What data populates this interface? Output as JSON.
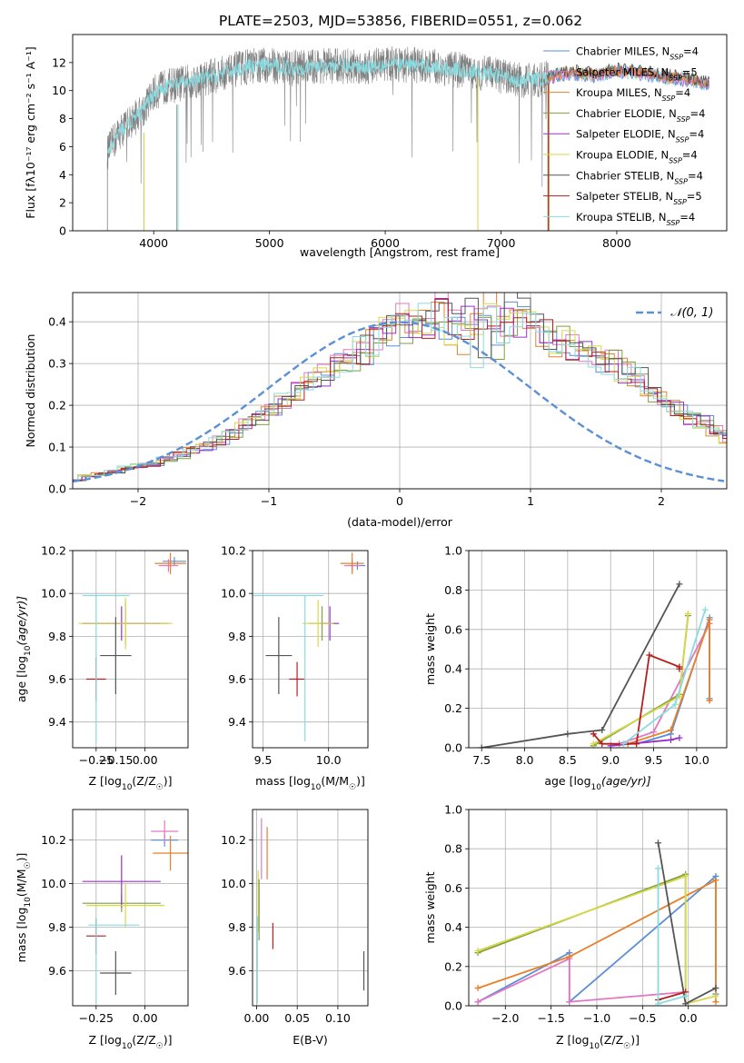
{
  "figure": {
    "title": "PLATE=2503, MJD=53856, FIBERID=0551, z=0.062"
  },
  "colors": {
    "chabrier_miles": "#5b8fd6",
    "salpeter_miles": "#e377c2",
    "kroupa_miles": "#e6802a",
    "chabrier_elodie": "#7f9f3f",
    "salpeter_elodie": "#9b30c9",
    "kroupa_elodie": "#d6d84a",
    "chabrier_stelib": "#555555",
    "salpeter_stelib": "#b51f1f",
    "kroupa_stelib": "#8adbe0",
    "data_gray": "#808080",
    "normal_curve": "#5b8fd6"
  },
  "chart_data": [
    {
      "id": "spectrum",
      "type": "line",
      "xlabel": "wavelength [Angstrom, rest frame]",
      "ylabel": "Flux [fλ10⁻¹⁷ erg cm⁻² s⁻¹ A⁻¹]",
      "xlim": [
        3300,
        8950
      ],
      "ylim": [
        0,
        14
      ],
      "xticks": [
        4000,
        5000,
        6000,
        7000,
        8000
      ],
      "yticks": [
        0,
        2,
        4,
        6,
        8,
        10,
        12
      ],
      "grid": false,
      "legend_position": "right",
      "spectrum_envelope": {
        "x": [
          3600,
          3700,
          3800,
          3900,
          4000,
          4100,
          4300,
          4500,
          4800,
          5000,
          5200,
          5500,
          5800,
          6000,
          6300,
          6600,
          6900,
          7200,
          7400
        ],
        "y": [
          5.6,
          7.0,
          7.8,
          8.5,
          9.8,
          10.3,
          10.6,
          11.0,
          11.7,
          11.8,
          11.6,
          11.8,
          11.7,
          11.9,
          11.8,
          11.5,
          11.2,
          10.7,
          10.9
        ]
      },
      "models_tail": {
        "x": [
          7400,
          7600,
          7800,
          8000,
          8200,
          8400,
          8600,
          8800
        ],
        "y": [
          10.9,
          11.3,
          11.1,
          11.4,
          11.3,
          11.0,
          10.8,
          10.5
        ]
      },
      "series": [
        {
          "name": "Chabrier MILES, N$_{SSP}$=4",
          "label_main": "Chabrier MILES, N",
          "label_sub": "SSP",
          "label_end": "=4",
          "color_key": "chabrier_miles"
        },
        {
          "name": "Salpeter MILES, N$_{SSP}$=5",
          "label_main": "Salpeter MILES, N",
          "label_sub": "SSP",
          "label_end": "=5",
          "color_key": "salpeter_miles"
        },
        {
          "name": "Kroupa MILES, N$_{SSP}$=4",
          "label_main": "Kroupa MILES, N",
          "label_sub": "SSP",
          "label_end": "=4",
          "color_key": "kroupa_miles"
        },
        {
          "name": "Chabrier ELODIE, N$_{SSP}$=4",
          "label_main": "Chabrier ELODIE, N",
          "label_sub": "SSP",
          "label_end": "=4",
          "color_key": "chabrier_elodie"
        },
        {
          "name": "Salpeter ELODIE, N$_{SSP}$=4",
          "label_main": "Salpeter ELODIE, N",
          "label_sub": "SSP",
          "label_end": "=4",
          "color_key": "salpeter_elodie"
        },
        {
          "name": "Kroupa ELODIE, N$_{SSP}$=4",
          "label_main": "Kroupa ELODIE, N",
          "label_sub": "SSP",
          "label_end": "=4",
          "color_key": "kroupa_elodie"
        },
        {
          "name": "Chabrier STELIB, N$_{SSP}$=4",
          "label_main": "Chabrier STELIB, N",
          "label_sub": "SSP",
          "label_end": "=4",
          "color_key": "chabrier_stelib"
        },
        {
          "name": "Salpeter STELIB, N$_{SSP}$=5",
          "label_main": "Salpeter STELIB, N",
          "label_sub": "SSP",
          "label_end": "=5",
          "color_key": "salpeter_stelib"
        },
        {
          "name": "Kroupa STELIB, N$_{SSP}$=4",
          "label_main": "Kroupa STELIB, N",
          "label_sub": "SSP",
          "label_end": "=4",
          "color_key": "kroupa_stelib"
        }
      ]
    },
    {
      "id": "residuals",
      "type": "line",
      "xlabel": "(data-model)/error",
      "ylabel": "Normed distribution",
      "xlim": [
        -2.5,
        2.5
      ],
      "ylim": [
        0,
        0.47
      ],
      "xticks": [
        -2,
        -1,
        0,
        1,
        2
      ],
      "yticks": [
        0.0,
        0.1,
        0.2,
        0.3,
        0.4
      ],
      "grid": true,
      "legend_position": "top-right",
      "legend_label": "𝒩(0, 1)",
      "base_hist": {
        "bin_width": 0.1,
        "x_start": -2.5,
        "values": [
          0.02,
          0.03,
          0.035,
          0.04,
          0.05,
          0.055,
          0.06,
          0.07,
          0.08,
          0.09,
          0.1,
          0.115,
          0.13,
          0.15,
          0.17,
          0.19,
          0.21,
          0.23,
          0.25,
          0.27,
          0.29,
          0.31,
          0.33,
          0.35,
          0.37,
          0.38,
          0.39,
          0.4,
          0.41,
          0.41,
          0.42,
          0.41,
          0.4,
          0.4,
          0.39,
          0.38,
          0.37,
          0.35,
          0.34,
          0.33,
          0.31,
          0.3,
          0.28,
          0.26,
          0.23,
          0.21,
          0.19,
          0.17,
          0.16,
          0.14,
          0.12,
          0.11,
          0.1,
          0.09,
          0.08,
          0.07,
          0.06,
          0.06,
          0.05,
          0.045,
          0.04,
          0.035,
          0.03
        ]
      }
    },
    {
      "id": "age_vs_Z",
      "type": "scatter",
      "xlabel": "Z [log10(Z/Z☉)]",
      "xlabel_main": "Z [log",
      "xlabel_tail": "(Z/Z",
      "ylabel": "age [log10(age/yr)]",
      "ylabel_main": "age  [log",
      "ylabel_tail": "(age/yr)]",
      "xlim": [
        -0.37,
        0.22
      ],
      "ylim": [
        9.28,
        10.2
      ],
      "xticks": [
        -0.25,
        -0.15,
        0.0
      ],
      "xticklabels": [
        "−0.25",
        "−0.15",
        "0.00"
      ],
      "yticks": [
        9.4,
        9.6,
        9.8,
        10.0,
        10.2
      ],
      "points": [
        {
          "x": 0.15,
          "y": 10.15,
          "xerr": 0.06,
          "yerr": 0.02,
          "color_key": "chabrier_miles"
        },
        {
          "x": 0.12,
          "y": 10.13,
          "xerr": 0.05,
          "yerr": 0.03,
          "color_key": "salpeter_miles"
        },
        {
          "x": 0.13,
          "y": 10.14,
          "xerr": 0.08,
          "yerr": 0.05,
          "color_key": "kroupa_miles"
        },
        {
          "x": -0.1,
          "y": 9.86,
          "xerr": 0.22,
          "yerr": 0.1,
          "color_key": "chabrier_elodie"
        },
        {
          "x": -0.12,
          "y": 9.86,
          "xerr": 0.2,
          "yerr": 0.08,
          "color_key": "salpeter_elodie"
        },
        {
          "x": -0.1,
          "y": 9.86,
          "xerr": 0.24,
          "yerr": 0.12,
          "color_key": "kroupa_elodie"
        },
        {
          "x": -0.15,
          "y": 9.71,
          "xerr": 0.08,
          "yerr": 0.18,
          "color_key": "chabrier_stelib"
        },
        {
          "x": -0.25,
          "y": 9.6,
          "xerr": 0.05,
          "yerr": 0.1,
          "color_key": "salpeter_stelib"
        },
        {
          "x": -0.25,
          "y": 9.65,
          "xerr": 0.0,
          "yerr": 0.35,
          "color_key": "kroupa_stelib"
        },
        {
          "x": -0.2,
          "y": 9.99,
          "xerr": 0.12,
          "yerr": 0.0,
          "color_key": "kroupa_stelib"
        }
      ]
    },
    {
      "id": "age_vs_mass",
      "type": "scatter",
      "xlabel": "mass [log10(M/M☉)]",
      "xlabel_main": "mass [log",
      "xlabel_tail": "(M/M",
      "xlim": [
        9.42,
        10.3
      ],
      "ylim": [
        9.28,
        10.2
      ],
      "xticks": [
        9.5,
        10.0
      ],
      "xticklabels": [
        "9.5",
        "10.0"
      ],
      "yticks": [
        9.4,
        9.6,
        9.8,
        10.0,
        10.2
      ],
      "points": [
        {
          "x": 10.22,
          "y": 10.13,
          "xerr": 0.06,
          "yerr": 0.02,
          "color_key": "chabrier_miles"
        },
        {
          "x": 10.18,
          "y": 10.13,
          "xerr": 0.06,
          "yerr": 0.03,
          "color_key": "salpeter_miles"
        },
        {
          "x": 10.18,
          "y": 10.14,
          "xerr": 0.09,
          "yerr": 0.05,
          "color_key": "kroupa_miles"
        },
        {
          "x": 9.95,
          "y": 9.86,
          "xerr": 0.1,
          "yerr": 0.08,
          "color_key": "chabrier_elodie"
        },
        {
          "x": 10.01,
          "y": 9.86,
          "xerr": 0.07,
          "yerr": 0.08,
          "color_key": "salpeter_elodie"
        },
        {
          "x": 9.92,
          "y": 9.86,
          "xerr": 0.12,
          "yerr": 0.11,
          "color_key": "kroupa_elodie"
        },
        {
          "x": 9.62,
          "y": 9.71,
          "xerr": 0.1,
          "yerr": 0.18,
          "color_key": "chabrier_stelib"
        },
        {
          "x": 9.76,
          "y": 9.6,
          "xerr": 0.06,
          "yerr": 0.08,
          "color_key": "salpeter_stelib"
        },
        {
          "x": 9.82,
          "y": 9.65,
          "xerr": 0.0,
          "yerr": 0.34,
          "color_key": "kroupa_stelib"
        },
        {
          "x": 9.68,
          "y": 9.99,
          "xerr": 0.28,
          "yerr": 0.0,
          "color_key": "kroupa_stelib"
        }
      ]
    },
    {
      "id": "massweight_vs_age",
      "type": "line",
      "xlabel": "age [log10(age/yr)]",
      "xlabel_main": "age  [log",
      "xlabel_tail": "(age/yr)]",
      "ylabel": "mass weight",
      "xlim": [
        7.35,
        10.35
      ],
      "ylim": [
        0,
        1.0
      ],
      "xticks": [
        7.5,
        8.0,
        8.5,
        9.0,
        9.5,
        10.0
      ],
      "xticklabels": [
        "7.5",
        "8.0",
        "8.5",
        "9.0",
        "9.5",
        "10.0"
      ],
      "yticks": [
        0.0,
        0.2,
        0.4,
        0.6,
        0.8,
        1.0
      ],
      "series": [
        {
          "color_key": "chabrier_miles",
          "x": [
            9.3,
            9.7,
            10.15,
            10.15
          ],
          "y": [
            0.02,
            0.07,
            0.66,
            0.25
          ]
        },
        {
          "color_key": "salpeter_miles",
          "x": [
            9.1,
            9.5,
            10.15,
            10.15
          ],
          "y": [
            0.02,
            0.08,
            0.63,
            0.24
          ]
        },
        {
          "color_key": "kroupa_miles",
          "x": [
            9.2,
            9.7,
            10.15,
            10.15
          ],
          "y": [
            0.02,
            0.09,
            0.65,
            0.24
          ]
        },
        {
          "color_key": "chabrier_elodie",
          "x": [
            8.8,
            9.8,
            9.9
          ],
          "y": [
            0.01,
            0.27,
            0.67
          ]
        },
        {
          "color_key": "salpeter_elodie",
          "x": [
            9.0,
            9.7,
            9.8
          ],
          "y": [
            0.01,
            0.04,
            0.05
          ]
        },
        {
          "color_key": "kroupa_elodie",
          "x": [
            8.8,
            9.8,
            9.9
          ],
          "y": [
            0.02,
            0.26,
            0.68
          ]
        },
        {
          "color_key": "chabrier_stelib",
          "x": [
            7.5,
            8.5,
            8.9,
            9.8
          ],
          "y": [
            0.0,
            0.07,
            0.09,
            0.83
          ]
        },
        {
          "color_key": "salpeter_stelib",
          "x": [
            8.8,
            8.9,
            9.3,
            9.45,
            9.8,
            9.8
          ],
          "y": [
            0.07,
            0.02,
            0.02,
            0.47,
            0.41,
            0.4
          ]
        },
        {
          "color_key": "kroupa_stelib",
          "x": [
            9.15,
            9.75,
            10.1
          ],
          "y": [
            0.02,
            0.22,
            0.7
          ]
        }
      ]
    },
    {
      "id": "mass_vs_Z",
      "type": "scatter",
      "xlabel": "Z [log10(Z/Z☉)]",
      "xlabel_main": "Z [log",
      "xlabel_tail": "(Z/Z",
      "ylabel": "mass [log10(M/M☉)]",
      "ylabel_main": "mass [log",
      "ylabel_tail": "(M/M",
      "xlim": [
        -0.37,
        0.22
      ],
      "ylim": [
        9.44,
        10.34
      ],
      "xticks": [
        -0.25,
        0.0
      ],
      "xticklabels": [
        "−0.25",
        "0.00"
      ],
      "yticks": [
        9.6,
        9.8,
        10.0,
        10.2
      ],
      "points": [
        {
          "x": 0.1,
          "y": 10.2,
          "xerr": 0.07,
          "yerr": 0.03,
          "color_key": "chabrier_miles"
        },
        {
          "x": 0.1,
          "y": 10.24,
          "xerr": 0.07,
          "yerr": 0.05,
          "color_key": "salpeter_miles"
        },
        {
          "x": 0.13,
          "y": 10.14,
          "xerr": 0.09,
          "yerr": 0.08,
          "color_key": "kroupa_miles"
        },
        {
          "x": -0.12,
          "y": 9.91,
          "xerr": 0.2,
          "yerr": 0.04,
          "color_key": "chabrier_elodie"
        },
        {
          "x": -0.12,
          "y": 10.01,
          "xerr": 0.2,
          "yerr": 0.12,
          "color_key": "salpeter_elodie"
        },
        {
          "x": -0.1,
          "y": 9.9,
          "xerr": 0.2,
          "yerr": 0.1,
          "color_key": "kroupa_elodie"
        },
        {
          "x": -0.15,
          "y": 9.59,
          "xerr": 0.08,
          "yerr": 0.1,
          "color_key": "chabrier_stelib"
        },
        {
          "x": -0.25,
          "y": 9.76,
          "xerr": 0.05,
          "yerr": 0.08,
          "color_key": "salpeter_stelib"
        },
        {
          "x": -0.25,
          "y": 9.65,
          "xerr": 0.0,
          "yerr": 0.2,
          "color_key": "kroupa_stelib"
        },
        {
          "x": -0.16,
          "y": 9.81,
          "xerr": 0.13,
          "yerr": 0.0,
          "color_key": "kroupa_stelib"
        }
      ]
    },
    {
      "id": "mass_vs_ebv",
      "type": "scatter",
      "xlabel": "E(B-V)",
      "xlim": [
        -0.005,
        0.137
      ],
      "ylim": [
        9.44,
        10.34
      ],
      "xticks": [
        0.0,
        0.05,
        0.1
      ],
      "xticklabels": [
        "0.00",
        "0.05",
        "0.10"
      ],
      "yticks": [
        9.6,
        9.8,
        10.0,
        10.2
      ],
      "points": [
        {
          "x": 0.013,
          "y": 10.14,
          "xerr": 0.0,
          "yerr": 0.12,
          "color_key": "kroupa_miles"
        },
        {
          "x": 0.006,
          "y": 10.16,
          "xerr": 0.0,
          "yerr": 0.14,
          "color_key": "salpeter_miles"
        },
        {
          "x": 0.002,
          "y": 9.92,
          "xerr": 0.0,
          "yerr": 0.14,
          "color_key": "kroupa_elodie"
        },
        {
          "x": 0.003,
          "y": 9.88,
          "xerr": 0.0,
          "yerr": 0.14,
          "color_key": "chabrier_elodie"
        },
        {
          "x": 0.02,
          "y": 9.76,
          "xerr": 0.0,
          "yerr": 0.06,
          "color_key": "salpeter_stelib"
        },
        {
          "x": 0.132,
          "y": 9.6,
          "xerr": 0.0,
          "yerr": 0.09,
          "color_key": "chabrier_stelib"
        },
        {
          "x": 0.001,
          "y": 9.65,
          "xerr": 0.0,
          "yerr": 0.2,
          "color_key": "kroupa_stelib"
        }
      ]
    },
    {
      "id": "massweight_vs_Z",
      "type": "line",
      "xlabel": "Z [log10(Z/Z☉)]",
      "xlabel_main": "Z [log",
      "xlabel_tail": "(Z/Z",
      "ylabel": "mass weight",
      "xlim": [
        -2.4,
        0.42
      ],
      "ylim": [
        0,
        1.0
      ],
      "xticks": [
        -2.0,
        -1.5,
        -1.0,
        -0.5,
        0.0
      ],
      "xticklabels": [
        "−2.0",
        "−1.5",
        "−1.0",
        "−0.5",
        "0.0"
      ],
      "yticks": [
        0.0,
        0.2,
        0.4,
        0.6,
        0.8,
        1.0
      ],
      "series": [
        {
          "color_key": "chabrier_miles",
          "x": [
            -2.3,
            -1.3,
            -1.3,
            0.3,
            0.3
          ],
          "y": [
            0.02,
            0.27,
            0.02,
            0.66,
            0.06
          ]
        },
        {
          "color_key": "salpeter_miles",
          "x": [
            -2.3,
            -1.3,
            -1.3,
            -0.03,
            -0.03
          ],
          "y": [
            0.02,
            0.24,
            0.02,
            0.07,
            0.01
          ]
        },
        {
          "color_key": "kroupa_miles",
          "x": [
            -2.3,
            -1.3,
            0.3,
            0.3
          ],
          "y": [
            0.09,
            0.25,
            0.64,
            0.02
          ]
        },
        {
          "color_key": "chabrier_elodie",
          "x": [
            -2.3,
            -0.03,
            -0.03
          ],
          "y": [
            0.27,
            0.67,
            0.05
          ]
        },
        {
          "color_key": "kroupa_elodie",
          "x": [
            -2.3,
            -0.03,
            -0.03,
            0.3
          ],
          "y": [
            0.28,
            0.66,
            0.01,
            0.05
          ]
        },
        {
          "color_key": "chabrier_stelib",
          "x": [
            -0.33,
            -0.03,
            0.3
          ],
          "y": [
            0.83,
            0.01,
            0.09
          ]
        },
        {
          "color_key": "salpeter_stelib",
          "x": [
            -0.33,
            -0.03
          ],
          "y": [
            0.03,
            0.07
          ]
        },
        {
          "color_key": "kroupa_stelib",
          "x": [
            -0.33,
            -0.33,
            -0.03
          ],
          "y": [
            0.7,
            0.01,
            0.05
          ]
        }
      ]
    }
  ]
}
